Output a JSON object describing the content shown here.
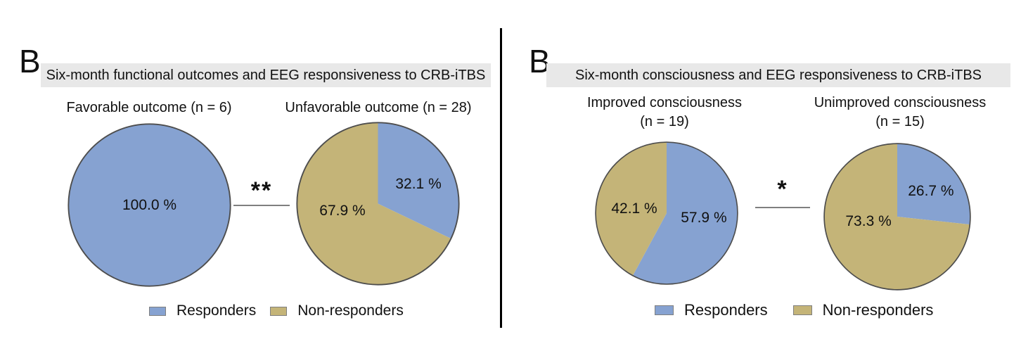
{
  "colors": {
    "responders": "#86A2D1",
    "non_responders": "#C4B478",
    "pie_stroke": "#4d4d4d",
    "header_bg": "#e8e8e8",
    "sig_line": "#7f7f7f"
  },
  "panels": [
    {
      "letter": "B",
      "header": "Six-month functional outcomes and EEG responsiveness to CRB-iTBS",
      "significance": "**",
      "pies": [
        {
          "title": "Favorable outcome (n = 6)",
          "slices": [
            {
              "name": "Responders",
              "value": 100.0,
              "color": "responders",
              "label": "100.0 %"
            }
          ]
        },
        {
          "title": "Unfavorable outcome (n = 28)",
          "slices": [
            {
              "name": "Responders",
              "value": 32.1,
              "color": "responders",
              "label": "32.1 %"
            },
            {
              "name": "Non-responders",
              "value": 67.9,
              "color": "non_responders",
              "label": "67.9 %"
            }
          ]
        }
      ],
      "legend": [
        {
          "label": "Responders",
          "color": "responders"
        },
        {
          "label": "Non-responders",
          "color": "non_responders"
        }
      ]
    },
    {
      "letter": "B",
      "header": "Six-month consciousness and EEG responsiveness to CRB-iTBS",
      "significance": "*",
      "pies": [
        {
          "title": "Improved consciousness",
          "subtitle": "(n = 19)",
          "slices": [
            {
              "name": "Responders",
              "value": 57.9,
              "color": "responders",
              "label": "57.9 %"
            },
            {
              "name": "Non-responders",
              "value": 42.1,
              "color": "non_responders",
              "label": "42.1 %"
            }
          ]
        },
        {
          "title": "Unimproved consciousness",
          "subtitle": "(n = 15)",
          "slices": [
            {
              "name": "Responders",
              "value": 26.7,
              "color": "responders",
              "label": "26.7 %"
            },
            {
              "name": "Non-responders",
              "value": 73.3,
              "color": "non_responders",
              "label": "73.3 %"
            }
          ]
        }
      ],
      "legend": [
        {
          "label": "Responders",
          "color": "responders"
        },
        {
          "label": "Non-responders",
          "color": "non_responders"
        }
      ]
    }
  ],
  "chart_data": [
    {
      "type": "pie",
      "panel": "Six-month functional outcomes and EEG responsiveness to CRB-iTBS",
      "title": "Favorable outcome (n = 6)",
      "n": 6,
      "labels": [
        "Responders",
        "Non-responders"
      ],
      "values": [
        100.0,
        0.0
      ],
      "unit": "%",
      "colors": [
        "#86A2D1",
        "#C4B478"
      ],
      "start_angle": "12 o'clock",
      "direction": "clockwise",
      "legend_position": "bottom",
      "significance_vs_pair": "**"
    },
    {
      "type": "pie",
      "panel": "Six-month functional outcomes and EEG responsiveness to CRB-iTBS",
      "title": "Unfavorable outcome (n = 28)",
      "n": 28,
      "labels": [
        "Responders",
        "Non-responders"
      ],
      "values": [
        32.1,
        67.9
      ],
      "unit": "%",
      "colors": [
        "#86A2D1",
        "#C4B478"
      ],
      "start_angle": "12 o'clock",
      "direction": "clockwise",
      "legend_position": "bottom",
      "significance_vs_pair": "**"
    },
    {
      "type": "pie",
      "panel": "Six-month consciousness and EEG responsiveness to CRB-iTBS",
      "title": "Improved consciousness (n = 19)",
      "n": 19,
      "labels": [
        "Responders",
        "Non-responders"
      ],
      "values": [
        57.9,
        42.1
      ],
      "unit": "%",
      "colors": [
        "#86A2D1",
        "#C4B478"
      ],
      "start_angle": "12 o'clock",
      "direction": "clockwise",
      "legend_position": "bottom",
      "significance_vs_pair": "*"
    },
    {
      "type": "pie",
      "panel": "Six-month consciousness and EEG responsiveness to CRB-iTBS",
      "title": "Unimproved consciousness (n = 15)",
      "n": 15,
      "labels": [
        "Responders",
        "Non-responders"
      ],
      "values": [
        26.7,
        73.3
      ],
      "unit": "%",
      "colors": [
        "#86A2D1",
        "#C4B478"
      ],
      "start_angle": "12 o'clock",
      "direction": "clockwise",
      "legend_position": "bottom",
      "significance_vs_pair": "*"
    }
  ]
}
